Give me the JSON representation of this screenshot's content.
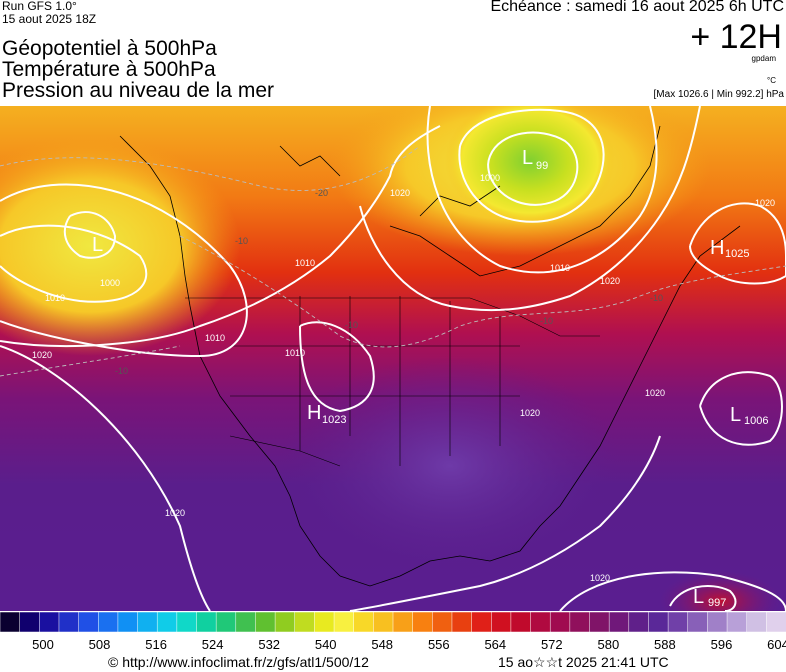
{
  "header": {
    "run": "Run GFS 1.0°",
    "run_date": "15 aout 2025 18Z",
    "titles": [
      "Géopotentiel à 500hPa",
      "Température à 500hPa",
      "Pression au niveau de la mer"
    ],
    "echeance": "Echéance : samedi 16 aout 2025 6h UTC",
    "lead": "+ 12H",
    "unit_gpdam": "gpdam",
    "unit_c": "°C",
    "maxmin": "[Max 1026.6 | Min 992.2] hPa"
  },
  "map": {
    "pressure_labels": [
      {
        "text": "L",
        "sub": "99"
      },
      {
        "text": "H",
        "sub": "1025"
      },
      {
        "text": "L",
        "sub": "1006"
      },
      {
        "text": "H",
        "sub": "1023"
      },
      {
        "text": "L",
        "sub": "997"
      },
      {
        "text": "L",
        "sub": ""
      }
    ],
    "isobar_values": [
      "1000",
      "1010",
      "1020",
      "1020",
      "1010",
      "1020",
      "1020",
      "1020",
      "1010",
      "1010",
      "1010",
      "1020",
      "1000",
      "1020",
      "1020"
    ],
    "temp_values": [
      "-20",
      "-10",
      "-10",
      "-10",
      "-10",
      "-10"
    ]
  },
  "colorbar": {
    "ticks": [
      "500",
      "508",
      "516",
      "524",
      "532",
      "540",
      "548",
      "556",
      "564",
      "572",
      "580",
      "588",
      "596",
      "604"
    ],
    "colors": [
      "#0a0030",
      "#10006e",
      "#1a10a0",
      "#2030c8",
      "#2050e6",
      "#1a70f0",
      "#1090f4",
      "#10b0f0",
      "#10cce8",
      "#10d8c8",
      "#10d0a0",
      "#20c878",
      "#40c050",
      "#60c030",
      "#90cc20",
      "#c0dc20",
      "#e8ea20",
      "#f8f040",
      "#f8d828",
      "#f8c020",
      "#f8a018",
      "#f88010",
      "#f06010",
      "#e84010",
      "#e02018",
      "#d01020",
      "#c00a2c",
      "#b00a40",
      "#a00a50",
      "#90105c",
      "#801468",
      "#70187a",
      "#60208a",
      "#5a2898",
      "#7040a8",
      "#8860b8",
      "#a080c8",
      "#b8a0d8",
      "#d0c0e4",
      "#e0d0ec"
    ]
  },
  "footer": {
    "url": "© http://www.infoclimat.fr/z/gfs/atl1/500/12",
    "date": "15 ao☆☆t 2025 21:41 UTC"
  }
}
